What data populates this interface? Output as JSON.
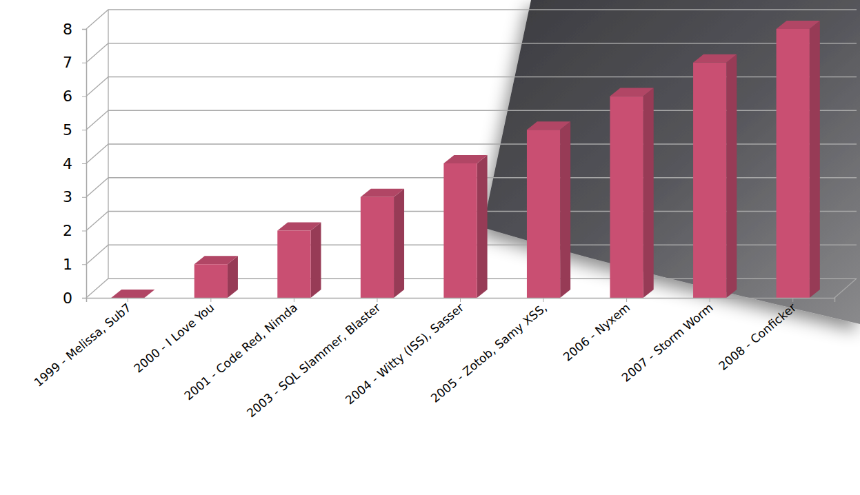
{
  "chart_data": {
    "type": "bar",
    "categories": [
      "1999 - Melissa, Sub7",
      "2000 - I Love You",
      "2001 - Code Red, Nimda",
      "2003 - SQL Slammer, Blaster",
      "2004 - Witty (ISS), Sasser",
      "2005 - Zotob, Samy XSS,",
      "2006 - Nyxem",
      "2007 - Storm Worm",
      "2008 - Conficker"
    ],
    "values": [
      0,
      1,
      2,
      3,
      4,
      5,
      6,
      7,
      8
    ],
    "color": "#c94f72",
    "ylim": [
      0,
      8
    ],
    "yticks": [
      0,
      1,
      2,
      3,
      4,
      5,
      6,
      7,
      8
    ],
    "grid": true
  }
}
